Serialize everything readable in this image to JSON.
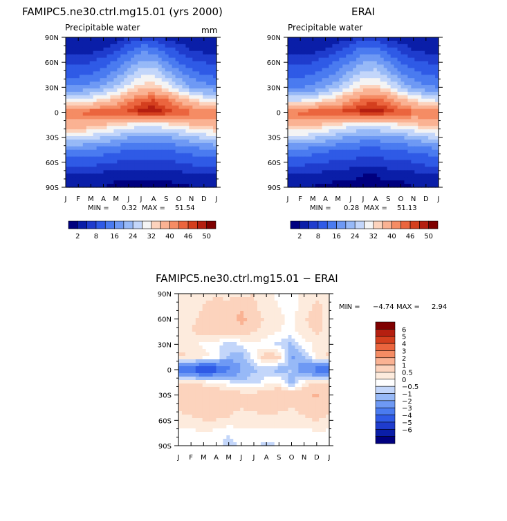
{
  "chart_data": [
    {
      "type": "heatmap",
      "title": "FAMIPC5.ne30.ctrl.mg15.01 (yrs 2000)",
      "subtitle": "Precipitable water",
      "units": "mm",
      "x_ticks": [
        "J",
        "F",
        "M",
        "A",
        "M",
        "J",
        "J",
        "A",
        "S",
        "O",
        "N",
        "D",
        "J"
      ],
      "y_ticks": [
        "90N",
        "60N",
        "30N",
        "0",
        "30S",
        "60S",
        "90S"
      ],
      "stats": {
        "min_label": "MIN =",
        "min": "0.32",
        "max_label": "MAX =",
        "max": "51.54"
      },
      "colorbar_labels": [
        "2",
        "8",
        "16",
        "24",
        "32",
        "40",
        "46",
        "50"
      ],
      "colorbar_colors": [
        "#00007f",
        "#0a1ea8",
        "#1f3ccd",
        "#2f5ae6",
        "#4a7bf0",
        "#6e99f4",
        "#97b9f7",
        "#c3d6fa",
        "#f4f4f4",
        "#fcd3bd",
        "#fab293",
        "#f58c64",
        "#eb653e",
        "#d43f1e",
        "#b51f10",
        "#7f0000"
      ],
      "data": {
        "lat_grid": [
          90,
          75,
          60,
          45,
          30,
          15,
          0,
          -15,
          -30,
          -45,
          -60,
          -75,
          -90
        ],
        "rows": [
          [
            2,
            2,
            2,
            2,
            3,
            5,
            7,
            6,
            4,
            3,
            2,
            2,
            2
          ],
          [
            4,
            4,
            4,
            5,
            7,
            11,
            15,
            14,
            10,
            7,
            5,
            4,
            4
          ],
          [
            7,
            7,
            8,
            10,
            13,
            17,
            21,
            21,
            16,
            12,
            9,
            8,
            7
          ],
          [
            11,
            11,
            12,
            14,
            18,
            23,
            27,
            28,
            23,
            18,
            14,
            12,
            11
          ],
          [
            17,
            17,
            18,
            21,
            25,
            30,
            34,
            35,
            31,
            25,
            20,
            18,
            17
          ],
          [
            28,
            28,
            30,
            33,
            36,
            41,
            45,
            46,
            43,
            38,
            34,
            30,
            28
          ],
          [
            42,
            43,
            45,
            46,
            46,
            47,
            49,
            50,
            48,
            46,
            44,
            43,
            42
          ],
          [
            38,
            38,
            37,
            35,
            33,
            31,
            30,
            30,
            31,
            33,
            35,
            37,
            38
          ],
          [
            27,
            27,
            26,
            24,
            22,
            20,
            19,
            19,
            20,
            21,
            23,
            25,
            27
          ],
          [
            16,
            16,
            15,
            14,
            13,
            12,
            12,
            12,
            12,
            13,
            14,
            15,
            16
          ],
          [
            10,
            10,
            9,
            9,
            8,
            7,
            7,
            7,
            7,
            8,
            9,
            10,
            10
          ],
          [
            5,
            5,
            5,
            4,
            3,
            3,
            3,
            3,
            3,
            4,
            4,
            5,
            5
          ],
          [
            3,
            3,
            2,
            2,
            1,
            1,
            1,
            1,
            1,
            1,
            2,
            3,
            3
          ]
        ]
      }
    },
    {
      "type": "heatmap",
      "title": "ERAI",
      "subtitle": "Precipitable water",
      "x_ticks": [
        "J",
        "F",
        "M",
        "A",
        "M",
        "J",
        "J",
        "A",
        "S",
        "O",
        "N",
        "D",
        "J"
      ],
      "y_ticks": [
        "90N",
        "60N",
        "30N",
        "0",
        "30S",
        "60S",
        "90S"
      ],
      "stats": {
        "min_label": "MIN =",
        "min": "0.28",
        "max_label": "MAX =",
        "max": "51.13"
      },
      "colorbar_labels": [
        "2",
        "8",
        "16",
        "24",
        "32",
        "40",
        "46",
        "50"
      ],
      "colorbar_colors": [
        "#00007f",
        "#0a1ea8",
        "#1f3ccd",
        "#2f5ae6",
        "#4a7bf0",
        "#6e99f4",
        "#97b9f7",
        "#c3d6fa",
        "#f4f4f4",
        "#fcd3bd",
        "#fab293",
        "#f58c64",
        "#eb653e",
        "#d43f1e",
        "#b51f10",
        "#7f0000"
      ],
      "data": {
        "lat_grid": [
          90,
          75,
          60,
          45,
          30,
          15,
          0,
          -15,
          -30,
          -45,
          -60,
          -75,
          -90
        ],
        "rows": [
          [
            2,
            2,
            2,
            2,
            3,
            4,
            6,
            6,
            4,
            3,
            2,
            2,
            2
          ],
          [
            4,
            4,
            4,
            5,
            7,
            10,
            14,
            14,
            10,
            7,
            5,
            4,
            4
          ],
          [
            7,
            7,
            8,
            10,
            13,
            16,
            20,
            20,
            16,
            12,
            9,
            8,
            7
          ],
          [
            11,
            11,
            12,
            14,
            17,
            22,
            26,
            27,
            22,
            17,
            14,
            12,
            11
          ],
          [
            16,
            16,
            17,
            20,
            24,
            29,
            33,
            34,
            30,
            24,
            19,
            17,
            16
          ],
          [
            27,
            27,
            29,
            32,
            35,
            40,
            44,
            45,
            42,
            37,
            33,
            29,
            27
          ],
          [
            43,
            44,
            46,
            47,
            47,
            48,
            49,
            50,
            48,
            46,
            44,
            43,
            43
          ],
          [
            37,
            37,
            36,
            34,
            32,
            30,
            29,
            29,
            30,
            32,
            34,
            36,
            37
          ],
          [
            26,
            26,
            25,
            23,
            21,
            19,
            18,
            18,
            19,
            20,
            22,
            24,
            26
          ],
          [
            15,
            15,
            14,
            13,
            12,
            11,
            11,
            11,
            11,
            12,
            13,
            14,
            15
          ],
          [
            9,
            9,
            9,
            8,
            7,
            7,
            6,
            6,
            7,
            7,
            8,
            9,
            9
          ],
          [
            5,
            5,
            4,
            4,
            3,
            3,
            2,
            2,
            3,
            3,
            4,
            5,
            5
          ],
          [
            2,
            2,
            2,
            1,
            1,
            1,
            1,
            1,
            1,
            1,
            2,
            2,
            2
          ]
        ]
      }
    },
    {
      "type": "heatmap",
      "title": "FAMIPC5.ne30.ctrl.mg15.01 − ERAI",
      "x_ticks": [
        "J",
        "F",
        "M",
        "A",
        "M",
        "J",
        "J",
        "A",
        "S",
        "O",
        "N",
        "D",
        "J"
      ],
      "y_ticks": [
        "90N",
        "60N",
        "30N",
        "0",
        "30S",
        "60S",
        "90S"
      ],
      "stats": {
        "min_label": "MIN =",
        "min": "−4.74",
        "max_label": "MAX =",
        "max": "2.94"
      },
      "colorbar_labels": [
        "6",
        "5",
        "4",
        "3",
        "2",
        "1",
        "0.5",
        "0",
        "−0.5",
        "−1",
        "−2",
        "−3",
        "−4",
        "−5",
        "−6"
      ],
      "colorbar_colors": [
        "#7f0000",
        "#b51f10",
        "#d43f1e",
        "#eb653e",
        "#f58c64",
        "#fab293",
        "#fcd3bd",
        "#fdebdd",
        "#ffffff",
        "#c3d6fa",
        "#97b9f7",
        "#6e99f4",
        "#4a7bf0",
        "#2f5ae6",
        "#1f3ccd",
        "#0a1ea8",
        "#00007f"
      ],
      "data": {
        "lat_grid": [
          90,
          75,
          60,
          45,
          30,
          15,
          0,
          -15,
          -30,
          -45,
          -60,
          -75,
          -90
        ],
        "rows": [
          [
            0.6,
            0.8,
            0.9,
            0.9,
            0.7,
            0.8,
            1.0,
            0.6,
            0.4,
            0.3,
            0.6,
            0.8,
            0.6
          ],
          [
            0.8,
            0.9,
            1.0,
            1.2,
            1.4,
            1.8,
            1.1,
            0.7,
            0.5,
            0.3,
            0.7,
            1.2,
            0.8
          ],
          [
            0.7,
            0.9,
            1.1,
            1.3,
            1.5,
            2.4,
            1.3,
            0.9,
            0.6,
            0.4,
            0.9,
            1.4,
            0.7
          ],
          [
            0.9,
            1.0,
            1.2,
            1.4,
            1.6,
            1.5,
            1.0,
            0.8,
            0.5,
            0.3,
            0.8,
            1.1,
            0.9
          ],
          [
            0.8,
            0.6,
            0.4,
            0.2,
            -0.3,
            0.1,
            0.4,
            0.2,
            -0.2,
            -0.6,
            0.3,
            0.6,
            0.8
          ],
          [
            1.2,
            1.0,
            0.7,
            0.3,
            -0.6,
            -0.8,
            0.3,
            1.5,
            1.2,
            -1.2,
            -0.6,
            0.8,
            1.2
          ],
          [
            -2.6,
            -3.2,
            -4.2,
            -3.6,
            -2.2,
            -1.0,
            -0.6,
            -0.4,
            -0.8,
            -0.4,
            -1.6,
            -2.6,
            -2.8
          ],
          [
            1.2,
            1.0,
            0.8,
            0.5,
            0.1,
            -0.4,
            -0.2,
            0.3,
            0.6,
            -0.8,
            0.5,
            1.0,
            1.2
          ],
          [
            1.4,
            1.5,
            1.6,
            1.7,
            1.6,
            1.4,
            1.3,
            1.4,
            1.6,
            1.5,
            1.6,
            2.2,
            1.4
          ],
          [
            1.1,
            1.2,
            1.3,
            1.3,
            1.2,
            1.0,
            1.1,
            1.2,
            1.1,
            1.0,
            1.2,
            1.6,
            1.1
          ],
          [
            0.8,
            0.9,
            1.0,
            1.0,
            0.9,
            0.8,
            0.8,
            0.9,
            0.8,
            0.8,
            0.9,
            1.0,
            0.8
          ],
          [
            0.4,
            0.3,
            0.5,
            0.3,
            0.0,
            0.4,
            0.3,
            0.3,
            0.2,
            0.4,
            0.3,
            0.4,
            0.4
          ],
          [
            0.3,
            0.2,
            0.4,
            0.3,
            -0.3,
            0.2,
            0.2,
            -0.2,
            0.1,
            0.2,
            0.3,
            0.3,
            0.3
          ]
        ]
      }
    }
  ]
}
